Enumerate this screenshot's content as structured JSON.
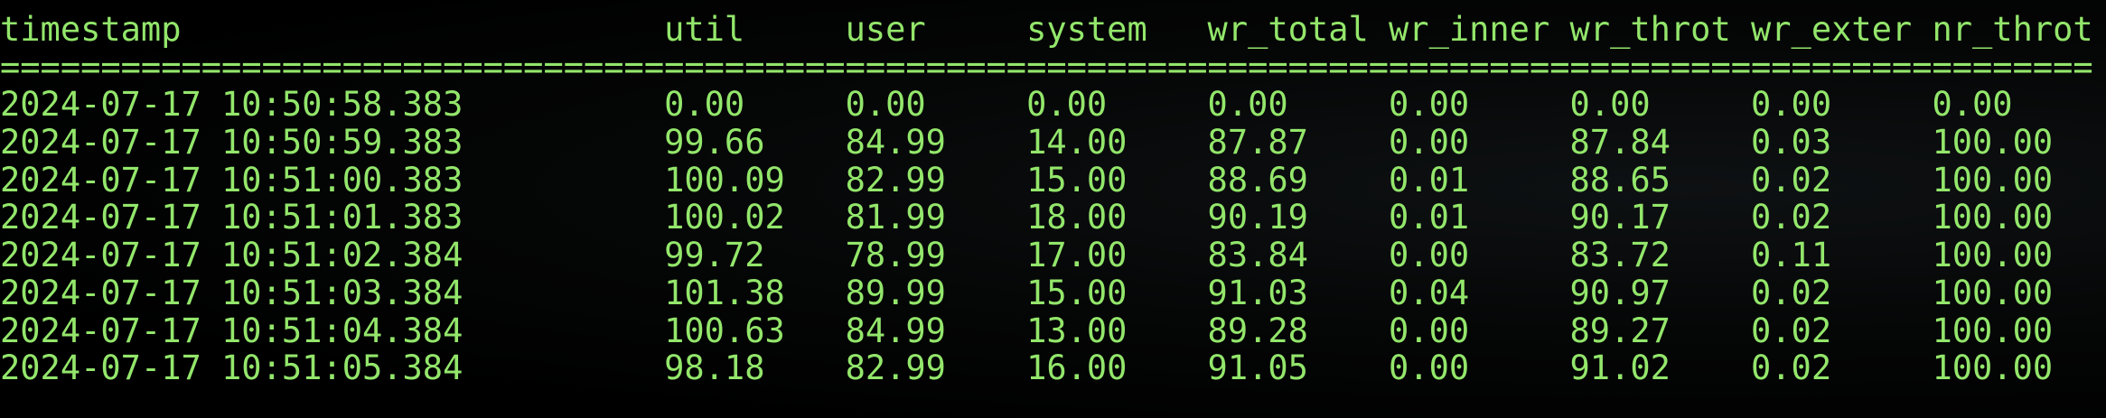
{
  "terminal": {
    "text_color": "#93e66b",
    "background": "#000000",
    "columns": [
      "timestamp",
      "util",
      "user",
      "system",
      "wr_total",
      "wr_inner",
      "wr_throt",
      "wr_exter",
      "nr_throt"
    ],
    "separator": "========================================================================================================",
    "rows": [
      [
        "2024-07-17 10:50:58.383",
        "0.00",
        "0.00",
        "0.00",
        "0.00",
        "0.00",
        "0.00",
        "0.00",
        "0.00"
      ],
      [
        "2024-07-17 10:50:59.383",
        "99.66",
        "84.99",
        "14.00",
        "87.87",
        "0.00",
        "87.84",
        "0.03",
        "100.00"
      ],
      [
        "2024-07-17 10:51:00.383",
        "100.09",
        "82.99",
        "15.00",
        "88.69",
        "0.01",
        "88.65",
        "0.02",
        "100.00"
      ],
      [
        "2024-07-17 10:51:01.383",
        "100.02",
        "81.99",
        "18.00",
        "90.19",
        "0.01",
        "90.17",
        "0.02",
        "100.00"
      ],
      [
        "2024-07-17 10:51:02.384",
        "99.72",
        "78.99",
        "17.00",
        "83.84",
        "0.00",
        "83.72",
        "0.11",
        "100.00"
      ],
      [
        "2024-07-17 10:51:03.384",
        "101.38",
        "89.99",
        "15.00",
        "91.03",
        "0.04",
        "90.97",
        "0.02",
        "100.00"
      ],
      [
        "2024-07-17 10:51:04.384",
        "100.63",
        "84.99",
        "13.00",
        "89.28",
        "0.00",
        "89.27",
        "0.02",
        "100.00"
      ],
      [
        "2024-07-17 10:51:05.384",
        "98.18",
        "82.99",
        "16.00",
        "91.05",
        "0.00",
        "91.02",
        "0.02",
        "100.00"
      ]
    ]
  }
}
